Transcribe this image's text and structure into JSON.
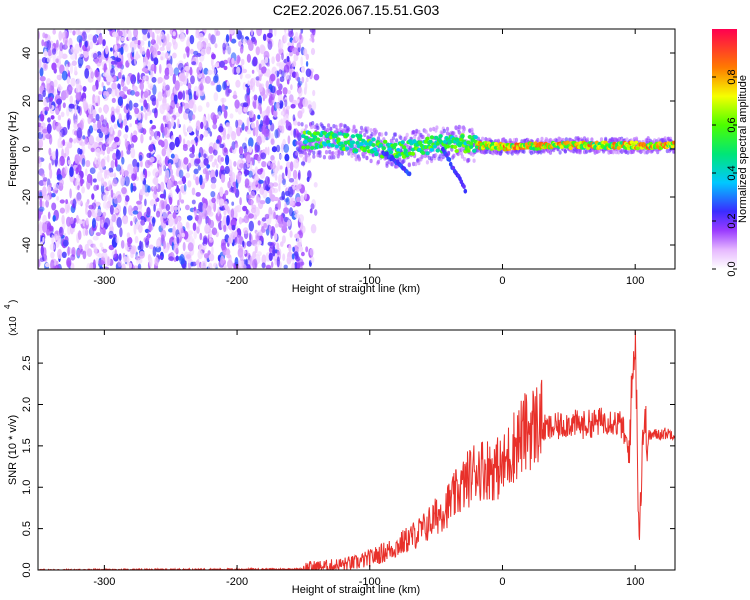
{
  "chart_data": [
    {
      "type": "heatmap",
      "title": "C2E2.2026.067.15.51.G03",
      "xlabel": "Height of straight line (km)",
      "ylabel": "Frequency (Hz)",
      "xlim": [
        -350,
        130
      ],
      "ylim": [
        -50,
        50
      ],
      "x_ticks": [
        -300,
        -200,
        -100,
        0,
        100
      ],
      "x_tick_labels": [
        "-300",
        "-200",
        "-100",
        "0",
        "100"
      ],
      "y_ticks": [
        -40,
        -20,
        0,
        20,
        40
      ],
      "y_tick_labels": [
        "-40",
        "-20",
        "0",
        "20",
        "40"
      ],
      "colorbar": {
        "label": "Normalized spectral amplitude",
        "range": [
          0,
          1
        ],
        "ticks": [
          0.0,
          0.2,
          0.4,
          0.6,
          0.8
        ],
        "tick_labels": [
          "0.0",
          "0.2",
          "0.4",
          "0.6",
          "0.8"
        ]
      },
      "noise_region_x": [
        -350,
        -150
      ],
      "signal_track": [
        {
          "x": -150,
          "f": 4.0
        },
        {
          "x": -120,
          "f": 3.0
        },
        {
          "x": -100,
          "f": 1.5
        },
        {
          "x": -80,
          "f": -1.0
        },
        {
          "x": -60,
          "f": 1.0
        },
        {
          "x": -40,
          "f": 3.0
        },
        {
          "x": -20,
          "f": 1.5
        },
        {
          "x": 0,
          "f": 1.0
        },
        {
          "x": 50,
          "f": 1.5
        },
        {
          "x": 100,
          "f": 1.5
        },
        {
          "x": 130,
          "f": 1.5
        }
      ]
    },
    {
      "type": "line",
      "xlabel": "Height of straight line (km)",
      "ylabel": "SNR (10 * v/v)",
      "y_scale_label": "(x10",
      "y_scale_exponent": "4",
      "xlim": [
        -350,
        130
      ],
      "ylim": [
        0,
        2.9
      ],
      "x_ticks": [
        -300,
        -200,
        -100,
        0,
        100
      ],
      "x_tick_labels": [
        "-300",
        "-200",
        "-100",
        "0",
        "100"
      ],
      "y_ticks": [
        0.0,
        0.5,
        1.0,
        1.5,
        2.0,
        2.5
      ],
      "y_tick_labels": [
        "0.0",
        "0.5",
        "1.0",
        "1.5",
        "2.0",
        "2.5"
      ],
      "color": "#e8302a",
      "series": [
        {
          "name": "SNR",
          "x": [
            -350,
            -150,
            -130,
            -110,
            -100,
            -80,
            -70,
            -60,
            -50,
            -40,
            -30,
            -20,
            -10,
            0,
            10,
            20,
            30,
            40,
            50,
            60,
            70,
            80,
            90,
            95,
            100,
            103,
            106,
            110,
            120,
            130
          ],
          "y": [
            0.0,
            0.01,
            0.03,
            0.07,
            0.12,
            0.25,
            0.35,
            0.45,
            0.6,
            0.75,
            0.95,
            1.15,
            1.15,
            1.15,
            1.45,
            1.6,
            1.7,
            1.72,
            1.78,
            1.75,
            1.78,
            1.82,
            1.75,
            1.4,
            2.9,
            0.4,
            1.75,
            1.62,
            1.65,
            1.65
          ]
        }
      ]
    }
  ]
}
